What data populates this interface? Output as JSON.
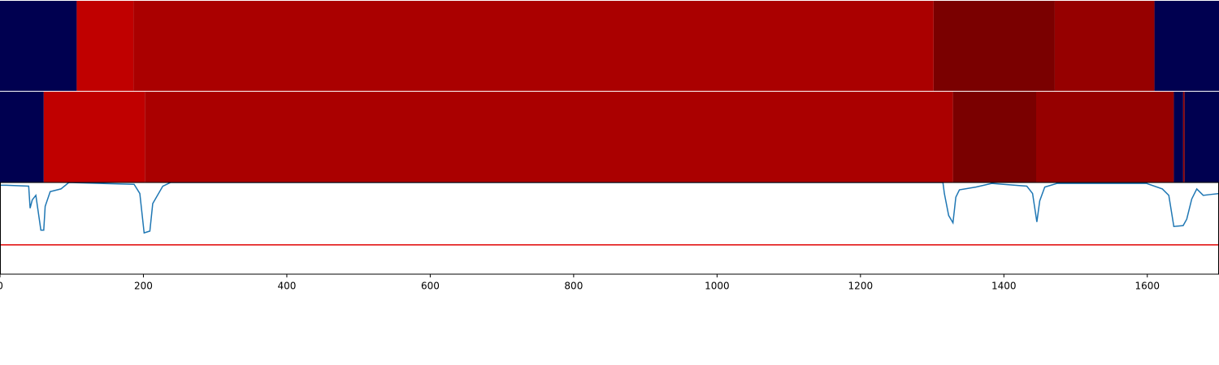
{
  "chart_data": [
    {
      "type": "segments",
      "xlim": [
        0,
        1700
      ],
      "segments": [
        {
          "start": 0,
          "end": 107,
          "color": "#000050"
        },
        {
          "start": 107,
          "end": 186,
          "color": "#c00000"
        },
        {
          "start": 186,
          "end": 1302,
          "color": "#aa0000"
        },
        {
          "start": 1302,
          "end": 1471,
          "color": "#7a0000"
        },
        {
          "start": 1471,
          "end": 1610,
          "color": "#960000"
        },
        {
          "start": 1610,
          "end": 1700,
          "color": "#000050"
        }
      ]
    },
    {
      "type": "segments",
      "xlim": [
        0,
        1700
      ],
      "segments": [
        {
          "start": 0,
          "end": 61,
          "color": "#000050"
        },
        {
          "start": 61,
          "end": 202,
          "color": "#c00000"
        },
        {
          "start": 202,
          "end": 1329,
          "color": "#aa0000"
        },
        {
          "start": 1329,
          "end": 1445,
          "color": "#7a0000"
        },
        {
          "start": 1445,
          "end": 1637,
          "color": "#960000"
        },
        {
          "start": 1637,
          "end": 1650,
          "color": "#000050"
        },
        {
          "start": 1650,
          "end": 1652,
          "color": "#960000"
        },
        {
          "start": 1652,
          "end": 1700,
          "color": "#000050"
        }
      ]
    },
    {
      "type": "line",
      "xlim": [
        0,
        1700
      ],
      "ylim": [
        0,
        1
      ],
      "xticks": [
        0,
        200,
        400,
        600,
        800,
        1000,
        1200,
        1400,
        1600
      ],
      "threshold": 0.32,
      "threshold_color": "#e00000",
      "series": [
        {
          "color": "#1f77b4",
          "x": [
            0,
            9,
            40,
            42,
            45,
            50,
            57,
            61,
            63,
            70,
            85,
            96,
            187,
            195,
            201,
            209,
            213,
            227,
            238,
            600,
            1200,
            1315,
            1317,
            1323,
            1329,
            1333,
            1338,
            1361,
            1383,
            1432,
            1440,
            1446,
            1450,
            1457,
            1474,
            1599,
            1621,
            1630,
            1637,
            1650,
            1655,
            1662,
            1669,
            1678,
            1689,
            1700
          ],
          "values": [
            0.97,
            0.97,
            0.96,
            0.72,
            0.81,
            0.86,
            0.48,
            0.48,
            0.74,
            0.9,
            0.93,
            1.0,
            0.98,
            0.88,
            0.45,
            0.47,
            0.77,
            0.96,
            1.0,
            1.0,
            1.0,
            1.0,
            0.88,
            0.64,
            0.56,
            0.84,
            0.92,
            0.95,
            0.99,
            0.96,
            0.88,
            0.57,
            0.8,
            0.95,
            0.99,
            0.99,
            0.93,
            0.86,
            0.52,
            0.53,
            0.6,
            0.82,
            0.93,
            0.86,
            0.87,
            0.88
          ]
        }
      ]
    }
  ]
}
